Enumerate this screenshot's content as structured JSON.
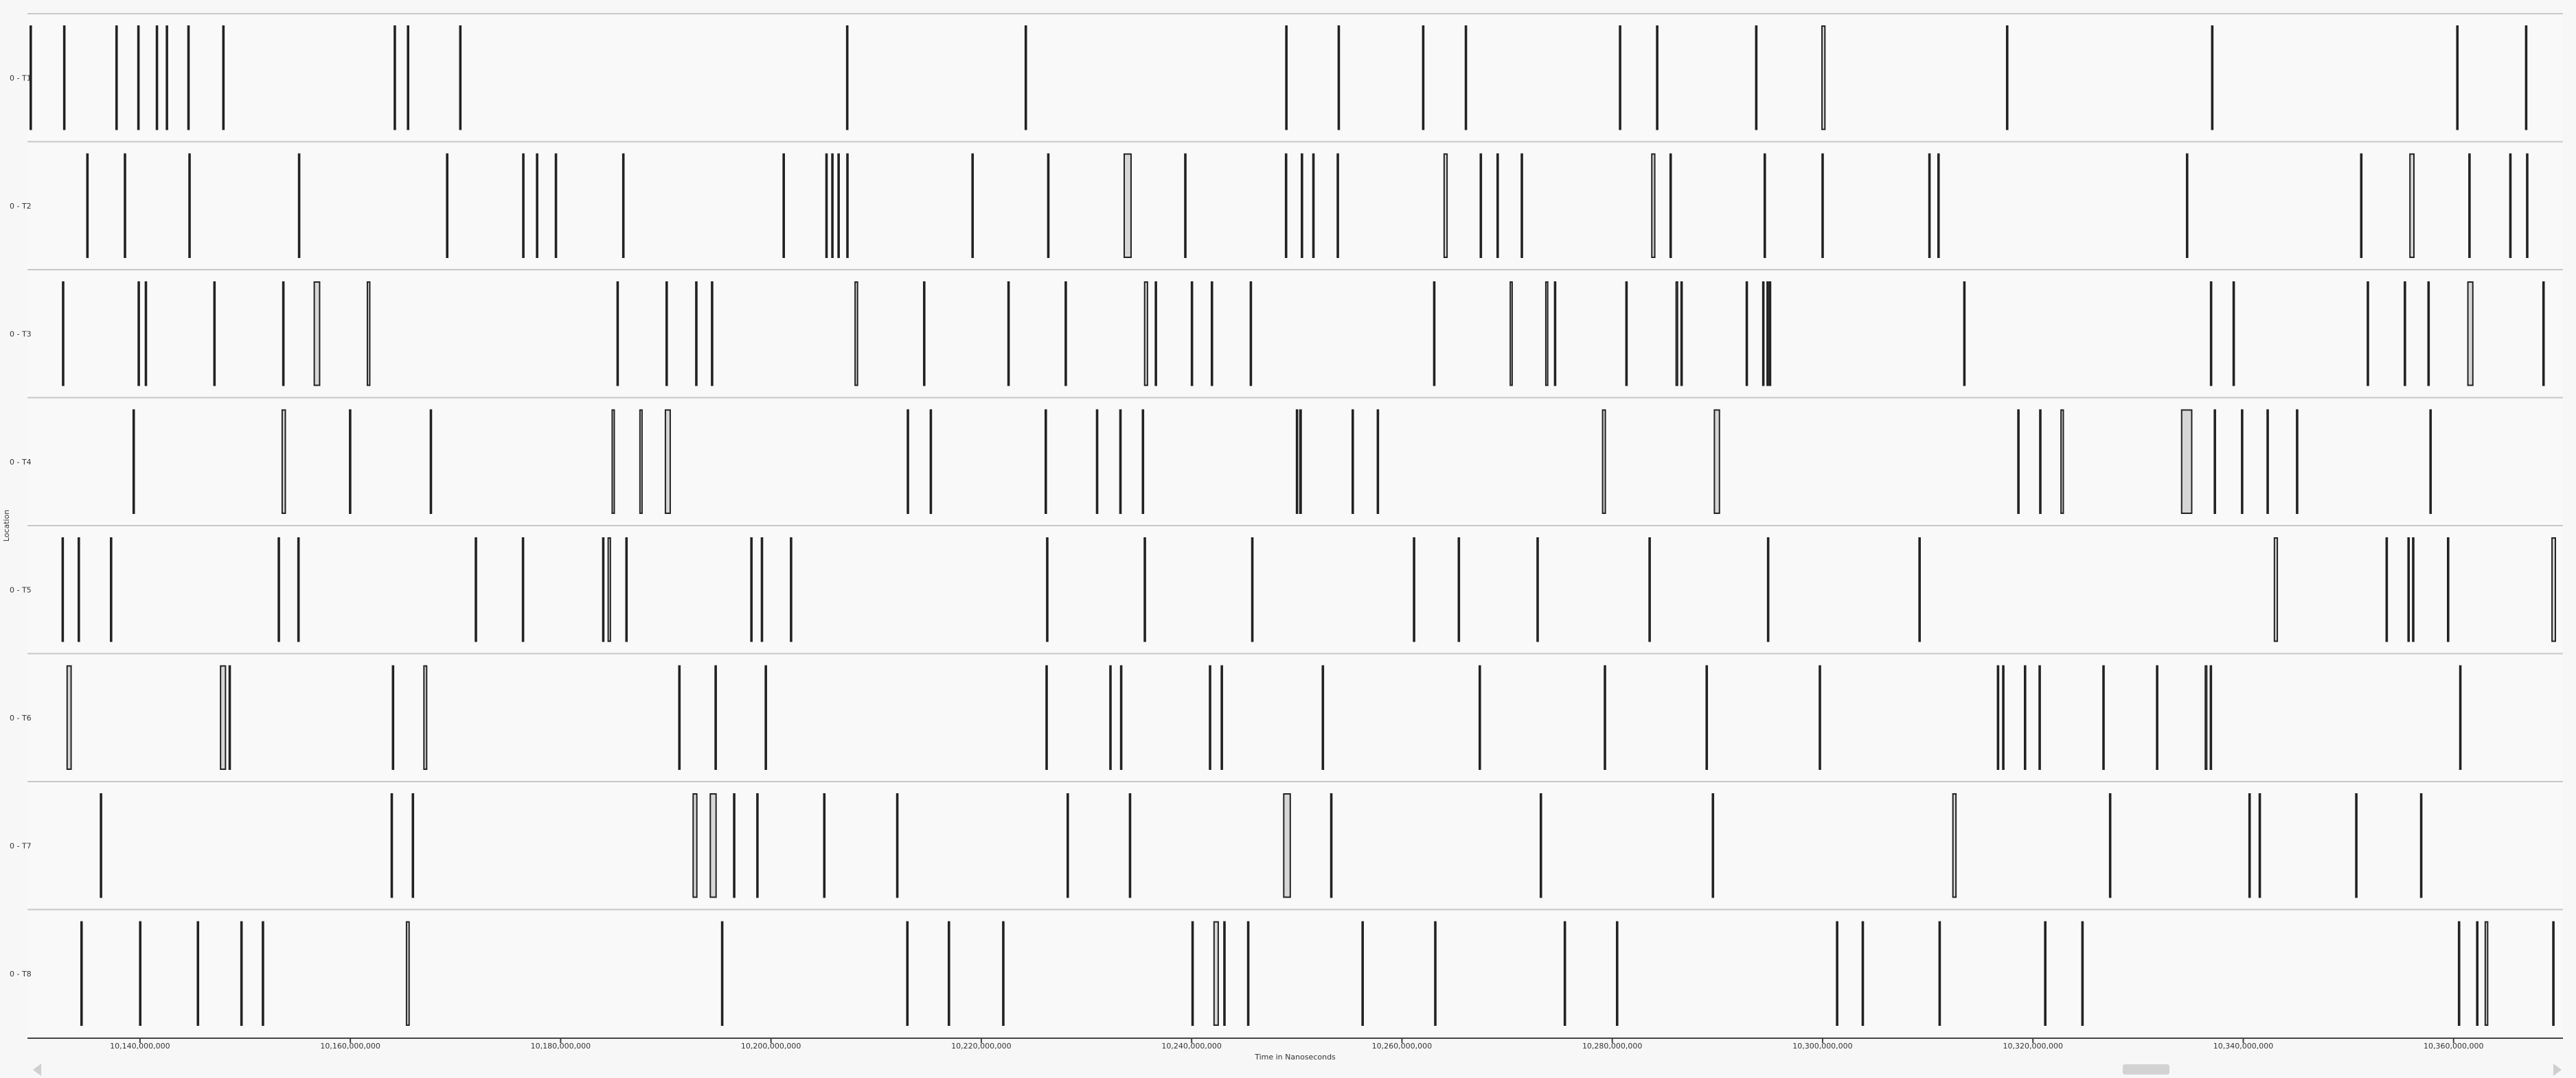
{
  "chart_data": {
    "type": "timeline",
    "ylabel": "Location",
    "xlabel": "Time in Nanoseconds",
    "xlim": [
      10129300000,
      10370400000
    ],
    "ticks": [
      {
        "value": 10140000000,
        "label": "10,140,000,000"
      },
      {
        "value": 10160000000,
        "label": "10,160,000,000"
      },
      {
        "value": 10180000000,
        "label": "10,180,000,000"
      },
      {
        "value": 10200000000,
        "label": "10,200,000,000"
      },
      {
        "value": 10220000000,
        "label": "10,220,000,000"
      },
      {
        "value": 10240000000,
        "label": "10,240,000,000"
      },
      {
        "value": 10260000000,
        "label": "10,260,000,000"
      },
      {
        "value": 10280000000,
        "label": "10,280,000,000"
      },
      {
        "value": 10300000000,
        "label": "10,300,000,000"
      },
      {
        "value": 10320000000,
        "label": "10,320,000,000"
      },
      {
        "value": 10340000000,
        "label": "10,340,000,000"
      },
      {
        "value": 10360000000,
        "label": "10,360,000,000"
      }
    ],
    "lanes": [
      {
        "name": "0 - T1",
        "events": [
          [
            10129560000,
            10129590000
          ],
          [
            10132750000,
            10132770000
          ],
          [
            10137720000,
            10137750000
          ],
          [
            10139800000,
            10139820000
          ],
          [
            10141560000,
            10141590000
          ],
          [
            10142510000,
            10142540000
          ],
          [
            10144560000,
            10144590000
          ],
          [
            10147880000,
            10147910000
          ],
          [
            10164180000,
            10164200000
          ],
          [
            10165440000,
            10165460000
          ],
          [
            10170410000,
            10170430000
          ],
          [
            10207200000,
            10207230000
          ],
          [
            10224180000,
            10224200000
          ],
          [
            10248960000,
            10248980000
          ],
          [
            10253940000,
            10253960000
          ],
          [
            10261970000,
            10261990000
          ],
          [
            10266030000,
            10266050000
          ],
          [
            10280690000,
            10280710000
          ],
          [
            10284220000,
            10284250000
          ],
          [
            10293640000,
            10293670000
          ],
          [
            10299940000,
            10300220000
          ],
          [
            10317500000,
            10317520000
          ],
          [
            10337000000,
            10337020000
          ],
          [
            10360310000,
            10360340000
          ],
          [
            10366850000,
            10366880000
          ]
        ]
      },
      {
        "name": "0 - T2",
        "events": [
          [
            10134950000,
            10134970000
          ],
          [
            10138520000,
            10138540000
          ],
          [
            10144660000,
            10144680000
          ],
          [
            10155080000,
            10155100000
          ],
          [
            10169160000,
            10169190000
          ],
          [
            10176400000,
            10176420000
          ],
          [
            10177710000,
            10177740000
          ],
          [
            10179500000,
            10179530000
          ],
          [
            10185910000,
            10185930000
          ],
          [
            10201160000,
            10201190000
          ],
          [
            10205230000,
            10205250000
          ],
          [
            10205790000,
            10205820000
          ],
          [
            10206380000,
            10206410000
          ],
          [
            10207220000,
            10207250000
          ],
          [
            10219120000,
            10219140000
          ],
          [
            10226320000,
            10226340000
          ],
          [
            10233590000,
            10234240000
          ],
          [
            10239350000,
            10239370000
          ],
          [
            10248930000,
            10248950000
          ],
          [
            10250440000,
            10250460000
          ],
          [
            10251530000,
            10251550000
          ],
          [
            10253850000,
            10253880000
          ],
          [
            10264010000,
            10264290000
          ],
          [
            10267450000,
            10267480000
          ],
          [
            10269050000,
            10269080000
          ],
          [
            10271350000,
            10271370000
          ],
          [
            10283760000,
            10284040000
          ],
          [
            10285500000,
            10285520000
          ],
          [
            10294450000,
            10294470000
          ],
          [
            10299950000,
            10299970000
          ],
          [
            10310110000,
            10310130000
          ],
          [
            10310970000,
            10311000000
          ],
          [
            10334610000,
            10334640000
          ],
          [
            10351170000,
            10351190000
          ],
          [
            10355850000,
            10356230000
          ],
          [
            10361460000,
            10361480000
          ],
          [
            10365350000,
            10365370000
          ],
          [
            10366950000,
            10366980000
          ]
        ]
      },
      {
        "name": "0 - T3",
        "events": [
          [
            10132640000,
            10132670000
          ],
          [
            10139830000,
            10139850000
          ],
          [
            10140510000,
            10140530000
          ],
          [
            10147030000,
            10147050000
          ],
          [
            10153580000,
            10153600000
          ],
          [
            10156570000,
            10157080000
          ],
          [
            10161620000,
            10161850000
          ],
          [
            10185370000,
            10185390000
          ],
          [
            10190030000,
            10190060000
          ],
          [
            10192850000,
            10192870000
          ],
          [
            10194350000,
            10194380000
          ],
          [
            10208000000,
            10208230000
          ],
          [
            10214520000,
            10214540000
          ],
          [
            10222540000,
            10222570000
          ],
          [
            10227980000,
            10228000000
          ],
          [
            10235530000,
            10235800000
          ],
          [
            10236550000,
            10236570000
          ],
          [
            10239980000,
            10240010000
          ],
          [
            10241880000,
            10241900000
          ],
          [
            10245580000,
            10245600000
          ],
          [
            10263020000,
            10263040000
          ],
          [
            10270300000,
            10270480000
          ],
          [
            10273680000,
            10273860000
          ],
          [
            10274510000,
            10274530000
          ],
          [
            10281300000,
            10281330000
          ],
          [
            10286070000,
            10286210000
          ],
          [
            10286540000,
            10286560000
          ],
          [
            10292740000,
            10292770000
          ],
          [
            10294310000,
            10294340000
          ],
          [
            10294720000,
            10294740000
          ],
          [
            10294950000,
            10294970000
          ],
          [
            10313430000,
            10313450000
          ],
          [
            10336890000,
            10336910000
          ],
          [
            10339040000,
            10339070000
          ],
          [
            10351800000,
            10351830000
          ],
          [
            10355320000,
            10355340000
          ],
          [
            10357570000,
            10357590000
          ],
          [
            10361360000,
            10361830000
          ],
          [
            10368500000,
            10368520000
          ]
        ]
      },
      {
        "name": "0 - T4",
        "events": [
          [
            10139350000,
            10139370000
          ],
          [
            10153520000,
            10153820000
          ],
          [
            10159930000,
            10159960000
          ],
          [
            10167610000,
            10167630000
          ],
          [
            10184900000,
            10185100000
          ],
          [
            10187540000,
            10187740000
          ],
          [
            10189960000,
            10190420000
          ],
          [
            10212970000,
            10212990000
          ],
          [
            10215150000,
            10215180000
          ],
          [
            10226080000,
            10226100000
          ],
          [
            10230960000,
            10230990000
          ],
          [
            10233180000,
            10233210000
          ],
          [
            10235320000,
            10235350000
          ],
          [
            10249970000,
            10250000000
          ],
          [
            10250290000,
            10250420000
          ],
          [
            10255270000,
            10255290000
          ],
          [
            10257660000,
            10257680000
          ],
          [
            10279080000,
            10279340000
          ],
          [
            10289710000,
            10290190000
          ],
          [
            10318570000,
            10318600000
          ],
          [
            10320650000,
            10320670000
          ],
          [
            10322670000,
            10322890000
          ],
          [
            10334140000,
            10335100000
          ],
          [
            10337250000,
            10337270000
          ],
          [
            10339840000,
            10339870000
          ],
          [
            10342270000,
            10342300000
          ],
          [
            10345070000,
            10345090000
          ],
          [
            10357760000,
            10357780000
          ]
        ]
      },
      {
        "name": "0 - T5",
        "events": [
          [
            10132600000,
            10132630000
          ],
          [
            10134130000,
            10134150000
          ],
          [
            10137200000,
            10137220000
          ],
          [
            10153150000,
            10153170000
          ],
          [
            10155020000,
            10155040000
          ],
          [
            10171890000,
            10171910000
          ],
          [
            10176370000,
            10176390000
          ],
          [
            10184000000,
            10184020000
          ],
          [
            10184520000,
            10184730000
          ],
          [
            10186210000,
            10186240000
          ],
          [
            10198090000,
            10198120000
          ],
          [
            10199090000,
            10199110000
          ],
          [
            10201860000,
            10201890000
          ],
          [
            10226220000,
            10226240000
          ],
          [
            10235500000,
            10235520000
          ],
          [
            10245720000,
            10245750000
          ],
          [
            10261100000,
            10261130000
          ],
          [
            10265360000,
            10265390000
          ],
          [
            10272850000,
            10272880000
          ],
          [
            10283500000,
            10283520000
          ],
          [
            10294770000,
            10294790000
          ],
          [
            10309170000,
            10309200000
          ],
          [
            10342960000,
            10343240000
          ],
          [
            10353590000,
            10353620000
          ],
          [
            10355670000,
            10355750000
          ],
          [
            10356110000,
            10356130000
          ],
          [
            10359430000,
            10359460000
          ],
          [
            10369360000,
            10369680000
          ]
        ]
      },
      {
        "name": "0 - T6",
        "events": [
          [
            10133070000,
            10133450000
          ],
          [
            10147660000,
            10148130000
          ],
          [
            10148480000,
            10148500000
          ],
          [
            10164010000,
            10164030000
          ],
          [
            10167000000,
            10167260000
          ],
          [
            10191240000,
            10191260000
          ],
          [
            10194690000,
            10194710000
          ],
          [
            10199460000,
            10199480000
          ],
          [
            10226160000,
            10226180000
          ],
          [
            10232230000,
            10232250000
          ],
          [
            10233250000,
            10233270000
          ],
          [
            10241700000,
            10241730000
          ],
          [
            10242820000,
            10242840000
          ],
          [
            10252430000,
            10252450000
          ],
          [
            10267350000,
            10267370000
          ],
          [
            10279250000,
            10279270000
          ],
          [
            10288930000,
            10288960000
          ],
          [
            10299690000,
            10299710000
          ],
          [
            10316630000,
            10316650000
          ],
          [
            10317130000,
            10317150000
          ],
          [
            10319200000,
            10319230000
          ],
          [
            10320590000,
            10320610000
          ],
          [
            10326660000,
            10326690000
          ],
          [
            10331760000,
            10331780000
          ],
          [
            10336390000,
            10336530000
          ],
          [
            10336870000,
            10336890000
          ],
          [
            10360590000,
            10360620000
          ]
        ]
      },
      {
        "name": "0 - T7",
        "events": [
          [
            10136240000,
            10136260000
          ],
          [
            10163890000,
            10163910000
          ],
          [
            10165900000,
            10165920000
          ],
          [
            10192600000,
            10192950000
          ],
          [
            10194230000,
            10194780000
          ],
          [
            10196450000,
            10196470000
          ],
          [
            10198660000,
            10198680000
          ],
          [
            10205020000,
            10205050000
          ],
          [
            10211960000,
            10211990000
          ],
          [
            10228170000,
            10228190000
          ],
          [
            10234090000,
            10234120000
          ],
          [
            10248760000,
            10249380000
          ],
          [
            10253230000,
            10253250000
          ],
          [
            10273160000,
            10273190000
          ],
          [
            10289520000,
            10289540000
          ],
          [
            10312390000,
            10312680000
          ],
          [
            10327290000,
            10327310000
          ],
          [
            10340550000,
            10340570000
          ],
          [
            10341520000,
            10341540000
          ],
          [
            10350700000,
            10350730000
          ],
          [
            10356870000,
            10356890000
          ]
        ]
      },
      {
        "name": "0 - T8",
        "events": [
          [
            10134390000,
            10134420000
          ],
          [
            10139970000,
            10140000000
          ],
          [
            10145460000,
            10145490000
          ],
          [
            10149600000,
            10149620000
          ],
          [
            10151640000,
            10151670000
          ],
          [
            10165340000,
            10165590000
          ],
          [
            10195310000,
            10195340000
          ],
          [
            10212920000,
            10212950000
          ],
          [
            10216870000,
            10216890000
          ],
          [
            10222040000,
            10222070000
          ],
          [
            10240040000,
            10240070000
          ],
          [
            10242130000,
            10242530000
          ],
          [
            10243070000,
            10243090000
          ],
          [
            10245330000,
            10245350000
          ],
          [
            10256210000,
            10256230000
          ],
          [
            10263120000,
            10263150000
          ],
          [
            10275440000,
            10275460000
          ],
          [
            10280410000,
            10280440000
          ],
          [
            10301330000,
            10301350000
          ],
          [
            10303770000,
            10303800000
          ],
          [
            10311080000,
            10311100000
          ],
          [
            10321120000,
            10321140000
          ],
          [
            10324660000,
            10324680000
          ],
          [
            10360470000,
            10360500000
          ],
          [
            10362200000,
            10362230000
          ],
          [
            10363010000,
            10363240000
          ],
          [
            10369440000,
            10369470000
          ]
        ]
      }
    ]
  }
}
